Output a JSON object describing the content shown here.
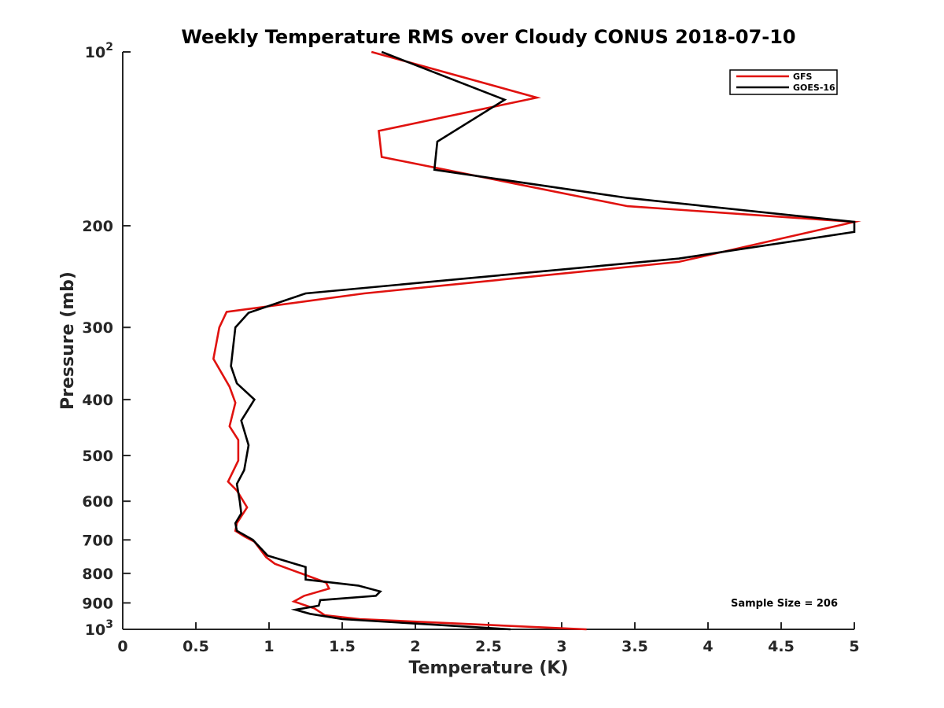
{
  "chart_data": {
    "type": "line",
    "title": "Weekly Temperature RMS over Cloudy CONUS 2018-07-10",
    "xlabel": "Temperature (K)",
    "ylabel": "Pressure (mb)",
    "xlim": [
      0,
      5
    ],
    "ylim": [
      100,
      1000
    ],
    "y_scale": "log",
    "y_reversed": true,
    "grid": false,
    "legend_position": "top-right",
    "x_ticks": [
      {
        "value": 0,
        "label": "0"
      },
      {
        "value": 0.5,
        "label": "0.5"
      },
      {
        "value": 1,
        "label": "1"
      },
      {
        "value": 1.5,
        "label": "1.5"
      },
      {
        "value": 2,
        "label": "2"
      },
      {
        "value": 2.5,
        "label": "2.5"
      },
      {
        "value": 3,
        "label": "3"
      },
      {
        "value": 3.5,
        "label": "3.5"
      },
      {
        "value": 4,
        "label": "4"
      },
      {
        "value": 4.5,
        "label": "4.5"
      },
      {
        "value": 5,
        "label": "5"
      }
    ],
    "y_ticks": [
      {
        "value": 100,
        "base": "10",
        "exp": "2"
      },
      {
        "value": 200,
        "label": "200"
      },
      {
        "value": 300,
        "label": "300"
      },
      {
        "value": 400,
        "label": "400"
      },
      {
        "value": 500,
        "label": "500"
      },
      {
        "value": 600,
        "label": "600"
      },
      {
        "value": 700,
        "label": "700"
      },
      {
        "value": 800,
        "label": "800"
      },
      {
        "value": 900,
        "label": "900"
      },
      {
        "value": 1000,
        "base": "10",
        "exp": "3"
      }
    ],
    "series": [
      {
        "name": "GFS",
        "color": "#e0120f",
        "points": [
          [
            1.7,
            100
          ],
          [
            2.83,
            120
          ],
          [
            1.75,
            137
          ],
          [
            1.77,
            152
          ],
          [
            3.45,
            185
          ],
          [
            5.0,
            197
          ],
          [
            3.8,
            231
          ],
          [
            1.65,
            262
          ],
          [
            0.71,
            282
          ],
          [
            0.66,
            300
          ],
          [
            0.62,
            340
          ],
          [
            0.73,
            380
          ],
          [
            0.77,
            405
          ],
          [
            0.73,
            445
          ],
          [
            0.79,
            470
          ],
          [
            0.79,
            510
          ],
          [
            0.72,
            555
          ],
          [
            0.78,
            575
          ],
          [
            0.85,
            615
          ],
          [
            0.78,
            655
          ],
          [
            0.77,
            675
          ],
          [
            0.83,
            690
          ],
          [
            0.9,
            705
          ],
          [
            0.98,
            750
          ],
          [
            1.04,
            770
          ],
          [
            1.22,
            800
          ],
          [
            1.39,
            830
          ],
          [
            1.41,
            850
          ],
          [
            1.24,
            875
          ],
          [
            1.17,
            895
          ],
          [
            1.31,
            920
          ],
          [
            1.38,
            945
          ],
          [
            1.62,
            960
          ],
          [
            3.17,
            1000
          ]
        ]
      },
      {
        "name": "GOES-16",
        "color": "#000000",
        "points": [
          [
            1.77,
            100
          ],
          [
            2.61,
            121
          ],
          [
            2.15,
            143
          ],
          [
            2.13,
            160
          ],
          [
            3.45,
            179
          ],
          [
            5.0,
            197
          ],
          [
            5.0,
            205
          ],
          [
            3.8,
            228
          ],
          [
            1.25,
            262
          ],
          [
            0.86,
            283
          ],
          [
            0.77,
            300
          ],
          [
            0.74,
            350
          ],
          [
            0.78,
            375
          ],
          [
            0.9,
            400
          ],
          [
            0.81,
            435
          ],
          [
            0.86,
            480
          ],
          [
            0.83,
            530
          ],
          [
            0.78,
            560
          ],
          [
            0.8,
            600
          ],
          [
            0.81,
            630
          ],
          [
            0.77,
            655
          ],
          [
            0.78,
            675
          ],
          [
            0.89,
            700
          ],
          [
            0.99,
            745
          ],
          [
            1.25,
            780
          ],
          [
            1.25,
            820
          ],
          [
            1.61,
            840
          ],
          [
            1.76,
            860
          ],
          [
            1.73,
            875
          ],
          [
            1.35,
            890
          ],
          [
            1.34,
            910
          ],
          [
            1.18,
            925
          ],
          [
            1.28,
            940
          ],
          [
            1.5,
            960
          ],
          [
            2.65,
            1000
          ]
        ]
      }
    ],
    "legend": [
      "GFS",
      "GOES-16"
    ],
    "annotation": "Sample Size = 206"
  }
}
